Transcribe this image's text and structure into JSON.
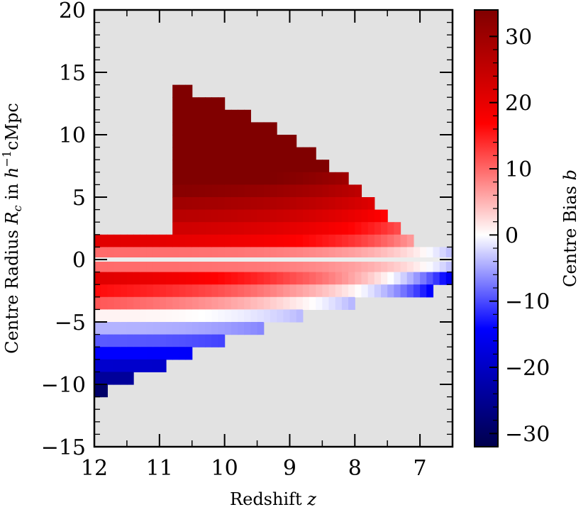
{
  "chart_data": {
    "type": "heatmap",
    "xlabel": "Redshift z",
    "ylabel": "Centre Radius R_c in h^-1 cMpc",
    "colorbar_label": "Centre Bias b",
    "x_axis": {
      "range": [
        12,
        6.5
      ],
      "reversed": true,
      "ticks": [
        "12",
        "11",
        "10",
        "9",
        "8",
        "7"
      ]
    },
    "y_axis": {
      "range": [
        -15,
        20
      ],
      "ticks": [
        "20",
        "15",
        "10",
        "5",
        "0",
        "−5",
        "−10",
        "−15"
      ]
    },
    "colorbar": {
      "range": [
        -32,
        34
      ],
      "ticks": [
        "30",
        "20",
        "10",
        "0",
        "−10",
        "−20",
        "−30"
      ],
      "colormap": "seismic"
    },
    "background_color": "#e2e2e2",
    "x_bins": [
      12.0,
      11.9,
      11.8,
      11.7,
      11.6,
      11.5,
      11.4,
      11.3,
      11.2,
      11.1,
      11.0,
      10.9,
      10.8,
      10.7,
      10.6,
      10.5,
      10.4,
      10.3,
      10.2,
      10.1,
      10.0,
      9.9,
      9.8,
      9.7,
      9.6,
      9.5,
      9.4,
      9.3,
      9.2,
      9.1,
      9.0,
      8.9,
      8.8,
      8.7,
      8.6,
      8.5,
      8.4,
      8.3,
      8.2,
      8.1,
      8.0,
      7.9,
      7.8,
      7.7,
      7.6,
      7.5,
      7.4,
      7.3,
      7.2,
      7.1,
      7.0,
      6.9,
      6.8,
      6.7,
      6.6
    ],
    "y_step": 1,
    "model_description": "bias field on (z, R_c) grid"
  }
}
